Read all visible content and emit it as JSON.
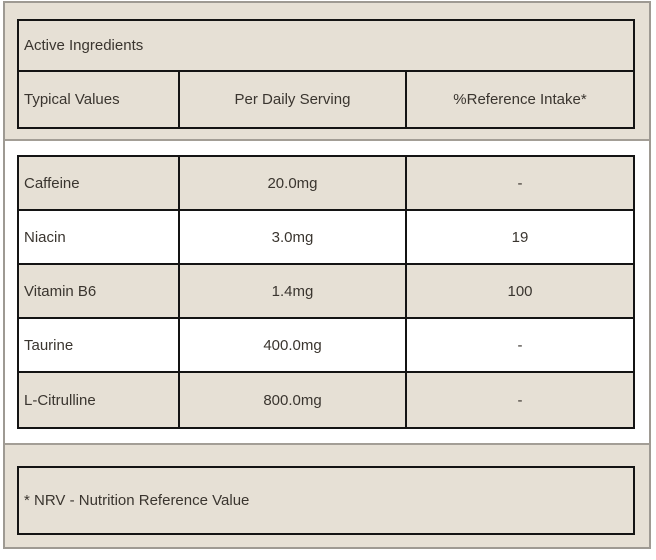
{
  "colors": {
    "beige": "#e6e0d5",
    "frame_grey": "#9e9a93",
    "table_border_black": "#141414",
    "text": "#3a352f",
    "white": "#ffffff"
  },
  "header": {
    "title": "Active Ingredients",
    "columns": {
      "values": "Typical Values",
      "serving": "Per Daily Serving",
      "intake": "%Reference Intake*"
    }
  },
  "ingredients": {
    "rows": [
      {
        "name": "Caffeine",
        "serving": "20.0mg",
        "intake": "-"
      },
      {
        "name": "Niacin",
        "serving": "3.0mg",
        "intake": "19"
      },
      {
        "name": "Vitamin B6",
        "serving": "1.4mg",
        "intake": "100"
      },
      {
        "name": "Taurine",
        "serving": "400.0mg",
        "intake": "-"
      },
      {
        "name": "L-Citrulline",
        "serving": "800.0mg",
        "intake": "-"
      }
    ]
  },
  "footnote": {
    "text": "* NRV - Nutrition Reference Value"
  }
}
